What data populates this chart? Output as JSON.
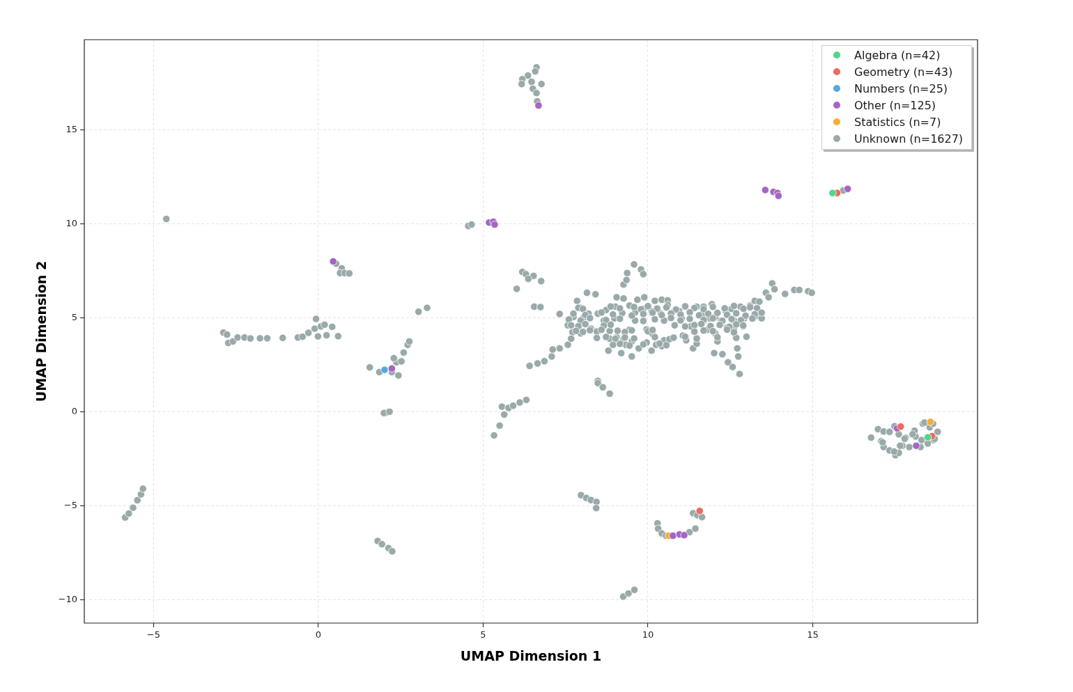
{
  "chart_data": {
    "type": "scatter",
    "xlabel": "UMAP Dimension 1",
    "ylabel": "UMAP Dimension 2",
    "xlim": [
      -7.1,
      20.0
    ],
    "ylim": [
      -11.25,
      19.8
    ],
    "xticks": [
      {
        "value": -5,
        "label": "−5"
      },
      0,
      5,
      10,
      15
    ],
    "yticks": [
      {
        "value": -10,
        "label": "−10"
      },
      {
        "value": -5,
        "label": "−5"
      },
      0,
      5,
      10,
      15
    ],
    "grid": true,
    "legend": "top right",
    "marker": "circle",
    "series": [
      {
        "name": "Algebra (n=42)",
        "color": "#4fd68a",
        "x": [
          15.6,
          18.49
        ],
        "values": [
          11.64,
          -1.36
        ]
      },
      {
        "name": "Geometry (n=43)",
        "color": "#eb6b5e",
        "x": [
          15.74,
          17.67,
          18.62,
          11.57
        ],
        "values": [
          11.64,
          -0.79,
          -1.3,
          -5.28
        ]
      },
      {
        "name": "Numbers (n=25)",
        "color": "#55a9e0",
        "x": [
          2.01
        ],
        "values": [
          2.23
        ]
      },
      {
        "name": "Other (n=125)",
        "color": "#a466c2",
        "x": [
          6.68,
          5.18,
          5.31,
          5.35,
          0.45,
          2.23,
          13.56,
          13.81,
          13.93,
          13.96,
          16.06,
          10.76,
          10.96,
          11.1,
          17.56,
          18.14
        ],
        "values": [
          16.3,
          10.07,
          10.11,
          9.96,
          8.0,
          2.3,
          11.8,
          11.7,
          11.64,
          11.49,
          11.86,
          -6.6,
          -6.53,
          -6.57,
          -0.89,
          -1.81
        ]
      },
      {
        "name": "Statistics (n=7)",
        "color": "#f5ad3a",
        "x": [
          10.63,
          18.57
        ],
        "values": [
          -6.6,
          -0.54
        ]
      },
      {
        "name": "Unknown (n=1627)",
        "color": "#9aa9a9",
        "x": [
          6.62,
          6.58,
          6.36,
          6.19,
          6.17,
          6.47,
          6.77,
          6.51,
          6.62,
          6.64,
          -4.61,
          4.55,
          4.65,
          0.54,
          0.71,
          0.66,
          0.8,
          0.94,
          -2.88,
          -2.77,
          -2.73,
          -2.59,
          -2.45,
          -2.24,
          -2.06,
          -1.77,
          -1.55,
          -1.08,
          -0.62,
          -0.48,
          -0.3,
          -0.11,
          -0.07,
          0.08,
          0.19,
          0.42,
          -0.01,
          0.25,
          0.6,
          3.04,
          3.3,
          1.56,
          1.85,
          2.23,
          2.43,
          2.37,
          2.29,
          2.52,
          2.59,
          2.71,
          2.76,
          2.06,
          1.99,
          2.16,
          6.19,
          6.3,
          6.53,
          6.76,
          6.02,
          6.37,
          6.55,
          6.74,
          9.58,
          9.79,
          9.86,
          9.37,
          9.26,
          9.35,
          13.77,
          13.84,
          13.58,
          13.66,
          14.16,
          14.44,
          14.59,
          14.86,
          14.97,
          7.32,
          7.57,
          7.74,
          7.85,
          8.15,
          8.41,
          7.96,
          8.03,
          7.71,
          7.96,
          7.67,
          7.57,
          8.2,
          8.27,
          8.48,
          8.66,
          8.73,
          8.8,
          9.05,
          9.01,
          8.98,
          8.84,
          8.84,
          9.05,
          9.19,
          9.51,
          9.26,
          9.44,
          9.22,
          9.44,
          9.26,
          9.51,
          9.33,
          9.68,
          9.89,
          9.61,
          9.61,
          9.72,
          9.96,
          9.96,
          10.11,
          10.14,
          9.86,
          10.11,
          10.21,
          10.42,
          10.6,
          10.39,
          10.49,
          10.25,
          10.42,
          10.49,
          10.65,
          10.6,
          10.74,
          10.81,
          10.95,
          11.13,
          11.02,
          11.06,
          11.16,
          11.37,
          11.3,
          11.48,
          11.48,
          11.48,
          11.66,
          11.69,
          11.94,
          11.87,
          11.69,
          11.8,
          12.04,
          12.04,
          12.11,
          12.01,
          12.26,
          12.22,
          12.36,
          12.4,
          12.54,
          12.61,
          12.61,
          12.68,
          12.71,
          12.74,
          12.43,
          12.57,
          12.78,
          12.81,
          12.92,
          12.89,
          12.99,
          13.1,
          13.28,
          13.24,
          13.38,
          13.45,
          7.89,
          8.03,
          8.87,
          9.15,
          9.58,
          9.79,
          10.0,
          10.28,
          10.56,
          10.85,
          11.13,
          11.41,
          11.69,
          11.97,
          12.33,
          12.61,
          12.9,
          13.1,
          13.31,
          7.74,
          8.1,
          8.59,
          8.94,
          9.51,
          9.86,
          10.14,
          10.42,
          10.7,
          10.99,
          11.27,
          11.55,
          11.83,
          12.11,
          12.4,
          12.68,
          12.96,
          13.24,
          13.45,
          7.6,
          7.96,
          8.24,
          8.73,
          9.15,
          9.86,
          10.21,
          10.7,
          10.99,
          11.27,
          11.69,
          11.97,
          12.26,
          12.54,
          12.82,
          13.17,
          7.67,
          7.89,
          8.1,
          8.66,
          8.87,
          11.13,
          11.41,
          11.62,
          11.9,
          12.18,
          12.47,
          12.68,
          12.89,
          7.82,
          8.03,
          8.24,
          8.45,
          8.59,
          9.08,
          9.3,
          9.51,
          10.0,
          10.14,
          11.41,
          11.69,
          11.97,
          12.4,
          12.61,
          8.45,
          8.73,
          9.01,
          9.3,
          9.58,
          10.21,
          10.78,
          11.13,
          11.48,
          12.11,
          8.94,
          9.15,
          9.44,
          9.86,
          10.35,
          10.56,
          6.41,
          6.65,
          6.86,
          7.08,
          7.32,
          7.11,
          8.48,
          8.48,
          8.63,
          8.84,
          5.33,
          5.5,
          5.64,
          5.57,
          5.77,
          5.91,
          6.11,
          6.31,
          -5.86,
          -5.75,
          -5.62,
          -5.49,
          -5.38,
          -5.32,
          1.8,
          1.93,
          2.13,
          2.24,
          7.97,
          8.13,
          8.27,
          8.44,
          8.43,
          10.29,
          10.31,
          10.42,
          10.55,
          11.26,
          11.44,
          11.37,
          11.5,
          11.64,
          9.25,
          9.41,
          9.59,
          15.92,
          16.77,
          16.98,
          17.15,
          17.08,
          17.15,
          17.33,
          17.51,
          17.61,
          17.72,
          17.93,
          17.33,
          17.61,
          17.82,
          18.09,
          18.12,
          18.3,
          18.34,
          18.55,
          18.65,
          18.79,
          18.67,
          18.49,
          17.48,
          17.47,
          17.12,
          17.79,
          18.03,
          18.27,
          18.39,
          18.7,
          17.65
        ],
        "values": [
          18.33,
          18.11,
          17.89,
          17.7,
          17.44,
          17.56,
          17.44,
          17.19,
          16.96,
          16.52,
          10.26,
          9.89,
          9.96,
          7.88,
          7.63,
          7.38,
          7.38,
          7.36,
          4.21,
          4.11,
          3.66,
          3.74,
          3.95,
          3.95,
          3.9,
          3.91,
          3.91,
          3.93,
          3.95,
          3.99,
          4.2,
          4.42,
          4.94,
          4.54,
          4.63,
          4.52,
          4.01,
          4.07,
          4.02,
          5.32,
          5.53,
          2.36,
          2.11,
          2.11,
          1.93,
          2.63,
          2.85,
          2.68,
          3.15,
          3.56,
          3.74,
          -0.05,
          -0.07,
          0.0,
          7.44,
          7.32,
          7.23,
          6.95,
          6.54,
          7.07,
          5.59,
          5.57,
          7.84,
          7.57,
          7.32,
          7.38,
          6.77,
          7.01,
          6.83,
          6.52,
          6.33,
          6.09,
          6.27,
          6.48,
          6.48,
          6.41,
          6.33,
          5.2,
          4.6,
          5.04,
          5.9,
          6.33,
          6.25,
          5.53,
          4.97,
          4.23,
          4.17,
          3.89,
          3.56,
          5.22,
          4.42,
          5.22,
          4.85,
          5.41,
          3.25,
          6.09,
          5.59,
          4.97,
          4.3,
          3.89,
          3.96,
          3.12,
          2.94,
          6.03,
          5.65,
          5.25,
          4.36,
          3.86,
          3.74,
          3.56,
          5.96,
          6.09,
          5.28,
          4.85,
          3.37,
          4.38,
          3.68,
          3.25,
          4.14,
          5.47,
          5.35,
          5.9,
          5.96,
          5.93,
          5.22,
          4.85,
          3.56,
          3.49,
          3.8,
          3.86,
          5.68,
          5.28,
          4.6,
          5.35,
          5.59,
          4.97,
          4.05,
          3.8,
          3.37,
          4.54,
          3.93,
          3.62,
          5.59,
          5.22,
          5.59,
          5.72,
          4.97,
          4.85,
          4.36,
          5.04,
          4.17,
          3.74,
          3.12,
          3.06,
          4.85,
          5.35,
          4.48,
          5.47,
          4.85,
          4.36,
          3.93,
          3.37,
          2.94,
          2.63,
          2.38,
          2.01,
          5.59,
          4.97,
          4.54,
          3.99,
          5.65,
          5.1,
          5.9,
          5.86,
          4.97,
          5.53,
          5.47,
          5.6,
          5.5,
          5.57,
          5.45,
          5.62,
          5.49,
          5.55,
          5.44,
          5.61,
          5.52,
          5.46,
          5.58,
          5.5,
          5.63,
          5.48,
          5.56,
          5.51,
          5.22,
          5.15,
          5.28,
          5.18,
          5.12,
          5.2,
          5.27,
          5.14,
          5.23,
          5.17,
          5.29,
          5.13,
          5.21,
          5.26,
          5.16,
          5.24,
          5.11,
          5.19,
          5.27,
          4.91,
          4.85,
          4.98,
          4.88,
          4.95,
          4.83,
          4.92,
          4.99,
          4.86,
          4.94,
          4.89,
          4.97,
          4.84,
          4.93,
          4.87,
          4.96,
          4.6,
          4.55,
          4.66,
          4.58,
          4.63,
          4.54,
          4.61,
          4.67,
          4.56,
          4.62,
          4.52,
          4.65,
          4.59,
          4.3,
          4.25,
          4.34,
          4.27,
          4.36,
          4.31,
          4.24,
          4.33,
          4.28,
          4.35,
          4.26,
          4.32,
          4.29,
          4.37,
          4.23,
          3.93,
          3.98,
          3.88,
          3.95,
          3.9,
          3.97,
          3.94,
          3.99,
          3.89,
          3.96,
          3.56,
          3.61,
          3.52,
          3.58,
          3.63,
          3.54,
          2.44,
          2.57,
          2.69,
          2.94,
          3.37,
          3.31,
          1.64,
          1.52,
          1.3,
          0.96,
          -1.26,
          -0.74,
          -0.15,
          0.27,
          0.2,
          0.32,
          0.49,
          0.63,
          -5.63,
          -5.42,
          -5.11,
          -4.71,
          -4.4,
          -4.1,
          -6.88,
          -7.05,
          -7.26,
          -7.43,
          -4.44,
          -4.59,
          -4.7,
          -4.8,
          -5.13,
          -5.94,
          -6.22,
          -6.48,
          -6.6,
          -6.41,
          -6.22,
          -5.4,
          -5.51,
          -5.61,
          -9.84,
          -9.67,
          -9.48,
          11.77,
          -1.38,
          -0.93,
          -1.05,
          -1.57,
          -1.88,
          -2.06,
          -2.31,
          -2.19,
          -1.81,
          -1.88,
          -1.07,
          -1.2,
          -1.38,
          -1.01,
          -1.32,
          -1.51,
          -0.64,
          -0.83,
          -0.64,
          -1.07,
          -1.51,
          -1.69,
          -0.77,
          -2.12,
          -1.63,
          -1.44,
          -1.2,
          -1.88,
          -0.58,
          -1.44,
          -1.81
        ]
      }
    ]
  }
}
